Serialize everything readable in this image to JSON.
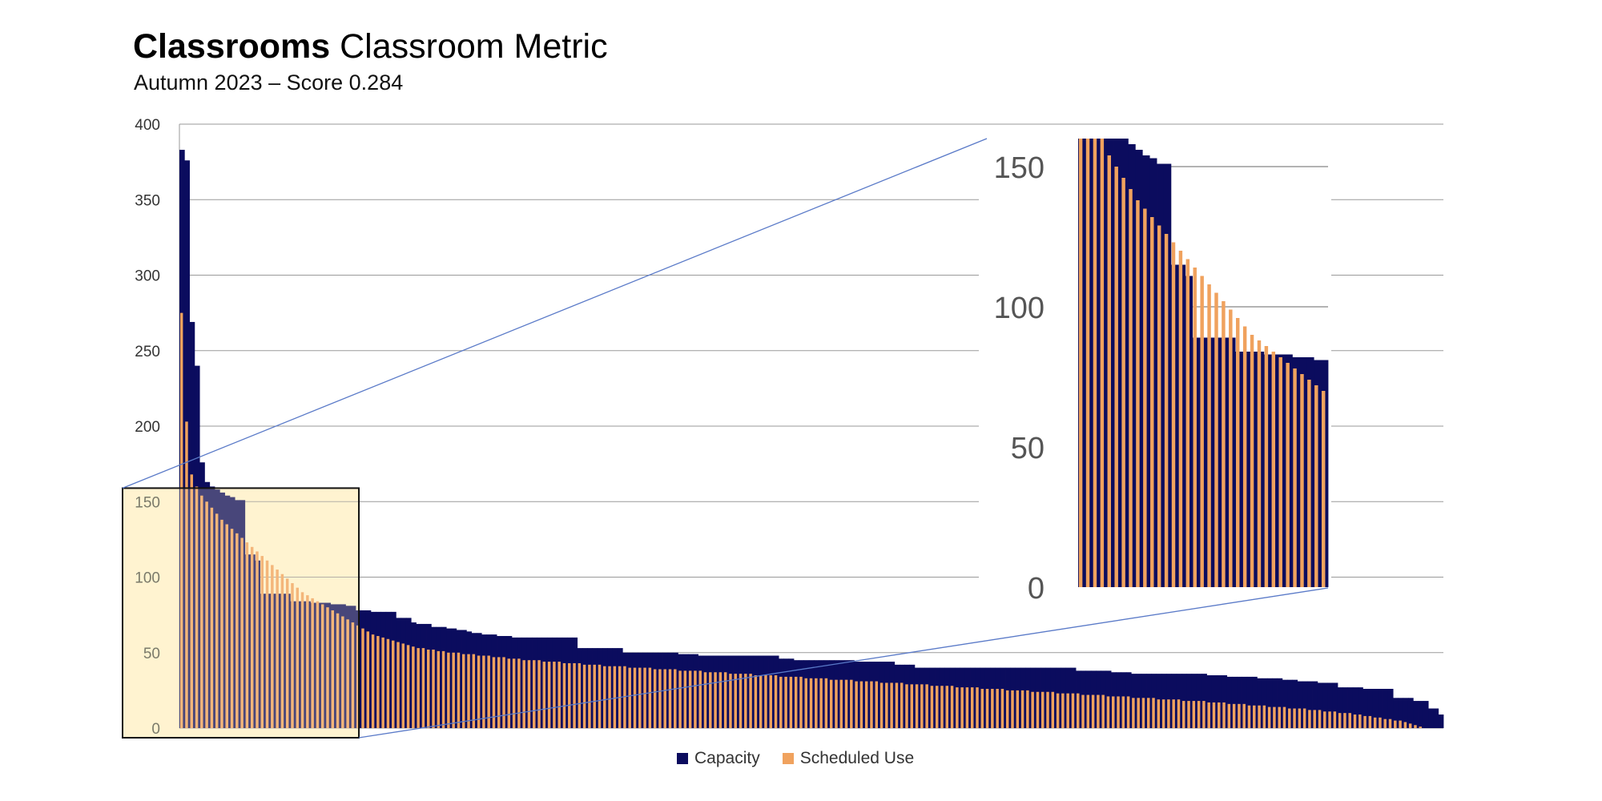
{
  "header": {
    "title_bold": "Classrooms",
    "title_rest": "Classroom Metric",
    "subtitle": "Autumn 2023 – Score 0.284"
  },
  "colors": {
    "capacity": "#0b0c5e",
    "scheduled": "#f0a25e",
    "grid": "#9a9a9a",
    "zoom_box_fill": "#fff3d0",
    "zoom_line": "#5a7ac8"
  },
  "chart_data": {
    "type": "bar",
    "title": "",
    "xlabel": "",
    "ylabel": "",
    "ylim": [
      0,
      400
    ],
    "yticks": [
      0,
      50,
      100,
      150,
      200,
      250,
      300,
      350,
      400
    ],
    "grid": true,
    "legend": "bottom-center",
    "series": [
      {
        "name": "Capacity",
        "values": [
          383,
          376,
          269,
          240,
          176,
          163,
          160,
          158,
          156,
          154,
          153,
          151,
          151,
          115,
          115,
          111,
          89,
          89,
          89,
          89,
          89,
          89,
          84,
          84,
          84,
          84,
          83,
          83,
          83,
          83,
          82,
          82,
          82,
          81,
          81,
          78,
          78,
          78,
          77,
          77,
          77,
          77,
          77,
          73,
          73,
          73,
          70,
          69,
          69,
          69,
          67,
          67,
          67,
          66,
          66,
          65,
          65,
          64,
          63,
          63,
          62,
          62,
          62,
          61,
          61,
          61,
          60,
          60,
          60,
          60,
          60,
          60,
          60,
          60,
          60,
          60,
          60,
          60,
          60,
          53,
          53,
          53,
          53,
          53,
          53,
          53,
          53,
          53,
          50,
          50,
          50,
          50,
          50,
          50,
          50,
          50,
          50,
          50,
          50,
          49,
          49,
          49,
          49,
          48,
          48,
          48,
          48,
          48,
          48,
          48,
          48,
          48,
          48,
          48,
          48,
          48,
          48,
          48,
          48,
          46,
          46,
          46,
          45,
          45,
          45,
          45,
          45,
          45,
          45,
          45,
          45,
          45,
          45,
          45,
          44,
          44,
          44,
          44,
          44,
          44,
          44,
          44,
          42,
          42,
          42,
          42,
          40,
          40,
          40,
          40,
          40,
          40,
          40,
          40,
          40,
          40,
          40,
          40,
          40,
          40,
          40,
          40,
          40,
          40,
          40,
          40,
          40,
          40,
          40,
          40,
          40,
          40,
          40,
          40,
          40,
          40,
          40,
          40,
          38,
          38,
          38,
          38,
          38,
          38,
          38,
          37,
          37,
          37,
          37,
          36,
          36,
          36,
          36,
          36,
          36,
          36,
          36,
          36,
          36,
          36,
          36,
          36,
          36,
          36,
          35,
          35,
          35,
          35,
          34,
          34,
          34,
          34,
          34,
          34,
          33,
          33,
          33,
          33,
          33,
          32,
          32,
          32,
          31,
          31,
          31,
          31,
          30,
          30,
          30,
          30,
          27,
          27,
          27,
          27,
          27,
          26,
          26,
          26,
          26,
          26,
          26,
          20,
          20,
          20,
          20,
          18,
          18,
          18,
          13,
          13,
          9
        ]
      },
      {
        "name": "Scheduled Use",
        "values": [
          275,
          203,
          168,
          160,
          154,
          150,
          146,
          142,
          138,
          135,
          132,
          129,
          126,
          123,
          120,
          117,
          114,
          111,
          108,
          105,
          102,
          99,
          96,
          93,
          90,
          88,
          86,
          84,
          82,
          80,
          78,
          76,
          74,
          72,
          70,
          68,
          66,
          64,
          62,
          61,
          60,
          59,
          58,
          57,
          56,
          55,
          54,
          53,
          53,
          52,
          52,
          51,
          51,
          50,
          50,
          50,
          49,
          49,
          49,
          48,
          48,
          48,
          47,
          47,
          47,
          46,
          46,
          46,
          45,
          45,
          45,
          45,
          44,
          44,
          44,
          44,
          43,
          43,
          43,
          43,
          42,
          42,
          42,
          42,
          41,
          41,
          41,
          41,
          41,
          40,
          40,
          40,
          40,
          40,
          39,
          39,
          39,
          39,
          39,
          38,
          38,
          38,
          38,
          38,
          37,
          37,
          37,
          37,
          37,
          36,
          36,
          36,
          36,
          36,
          35,
          35,
          35,
          35,
          35,
          34,
          34,
          34,
          34,
          34,
          33,
          33,
          33,
          33,
          33,
          32,
          32,
          32,
          32,
          32,
          31,
          31,
          31,
          31,
          31,
          30,
          30,
          30,
          30,
          30,
          29,
          29,
          29,
          29,
          29,
          28,
          28,
          28,
          28,
          28,
          27,
          27,
          27,
          27,
          27,
          26,
          26,
          26,
          26,
          26,
          25,
          25,
          25,
          25,
          25,
          24,
          24,
          24,
          24,
          24,
          23,
          23,
          23,
          23,
          23,
          22,
          22,
          22,
          22,
          22,
          21,
          21,
          21,
          21,
          21,
          20,
          20,
          20,
          20,
          20,
          19,
          19,
          19,
          19,
          19,
          18,
          18,
          18,
          18,
          18,
          17,
          17,
          17,
          17,
          16,
          16,
          16,
          16,
          15,
          15,
          15,
          15,
          14,
          14,
          14,
          14,
          13,
          13,
          13,
          13,
          12,
          12,
          12,
          11,
          11,
          11,
          10,
          10,
          10,
          9,
          9,
          8,
          8,
          7,
          7,
          6,
          6,
          5,
          5,
          4,
          3,
          2,
          1,
          0
        ]
      }
    ],
    "inset": {
      "description_free": true,
      "ylim": [
        0,
        160
      ],
      "yticks": [
        0,
        50,
        100,
        150
      ],
      "range_start": 0,
      "range_end": 35
    },
    "legend_entries": [
      "Capacity",
      "Scheduled Use"
    ]
  }
}
